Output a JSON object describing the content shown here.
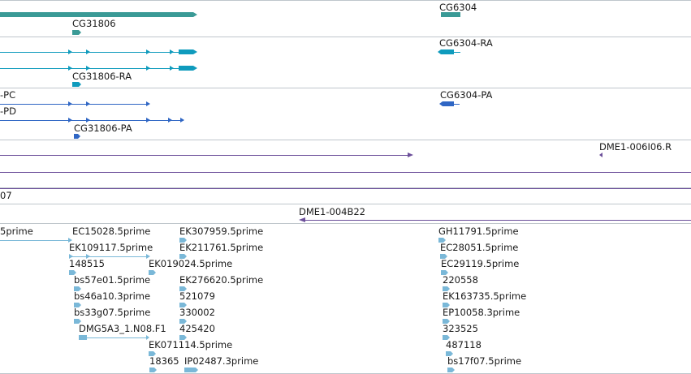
{
  "tracks": {
    "gene": {
      "labels": [
        "CG31806",
        "CG6304"
      ]
    },
    "transcripts_cyan": {
      "labels": [
        "CG31806-RA",
        "CG6304-RA"
      ]
    },
    "transcripts_blue": {
      "labels": [
        "-PC",
        "-PD",
        "CG31806-PA",
        "CG6304-PA"
      ]
    },
    "clones": {
      "labels": [
        "DME1-006I06.R",
        "07",
        "DME1-004B22"
      ]
    },
    "ests": {
      "labels": [
        "5prime",
        "EC15028.5prime",
        "EK307959.5prime",
        "GH11791.5prime",
        "EK109117.5prime",
        "EK211761.5prime",
        "EC28051.5prime",
        "148515",
        "EK019024.5prime",
        "EC29119.5prime",
        "bs57e01.5prime",
        "EK276620.5prime",
        "220558",
        "bs46a10.3prime",
        "521079",
        "EK163735.5prime",
        "bs33g07.5prime",
        "330002",
        "EP10058.3prime",
        "DMG5A3_1.N08.F1",
        "425420",
        "323525",
        "EK071114.5prime",
        "487118",
        "18365",
        "IP02487.3prime",
        "bs17f07.5prime"
      ]
    }
  },
  "colors": {
    "gene": "#3a9a96",
    "cyan": "#0f9bbd",
    "blue": "#2f66c4",
    "purple": "#6c4f9a",
    "est": "#7ab8d8",
    "separator": "#bfc6cc"
  }
}
